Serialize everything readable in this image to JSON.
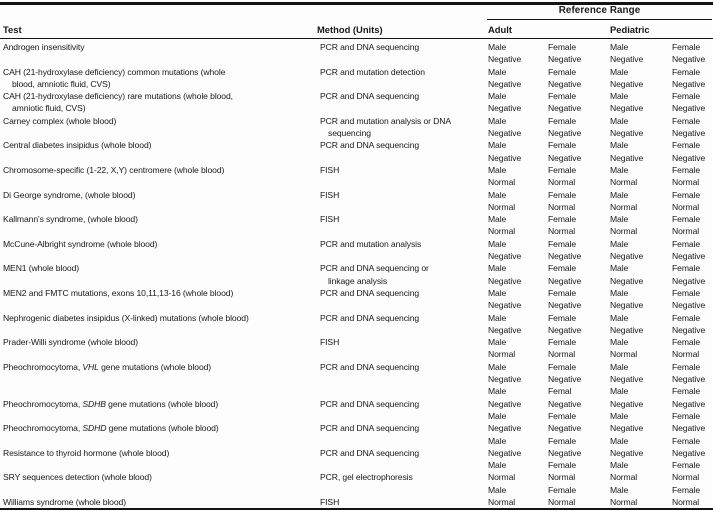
{
  "page": {
    "background_color": "#fdfdfd",
    "text_color": "#191919",
    "rule_color": "#141414"
  },
  "table": {
    "group_header": "Reference Range",
    "columns": {
      "test": "Test",
      "method": "Method (Units)",
      "adult": "Adult",
      "pediatric": "Pediatric"
    },
    "rows": [
      {
        "test": [
          "Androgen insensitivity"
        ],
        "method": [
          "PCR and DNA sequencing"
        ],
        "ref": [
          [
            "Male",
            "Female",
            "Male",
            "Female"
          ],
          [
            "Negative",
            "Negative",
            "Negative",
            "Negative"
          ]
        ]
      },
      {
        "test": [
          "CAH (21-hydroxylase deficiency) common mutations (whole",
          "blood, amniotic fluid, CVS)"
        ],
        "method": [
          "PCR and mutation detection"
        ],
        "ref": [
          [
            "Male",
            "Female",
            "Male",
            "Female"
          ],
          [
            "Negative",
            "Negative",
            "Negative",
            "Negative"
          ]
        ]
      },
      {
        "test": [
          "CAH (21-hydroxylase deficiency) rare mutations (whole blood,",
          "amniotic fluid, CVS)"
        ],
        "method": [
          "PCR and DNA sequencing"
        ],
        "ref": [
          [
            "Male",
            "Female",
            "Male",
            "Female"
          ],
          [
            "Negative",
            "Negative",
            "Negative",
            "Negative"
          ]
        ]
      },
      {
        "test": [
          "Carney complex (whole blood)"
        ],
        "method": [
          "PCR and mutation analysis or DNA",
          "sequencing"
        ],
        "ref": [
          [
            "Male",
            "Female",
            "Male",
            "Female"
          ],
          [
            "Negative",
            "Negative",
            "Negative",
            "Negative"
          ]
        ]
      },
      {
        "test": [
          "Central diabetes insipidus (whole blood)"
        ],
        "method": [
          "PCR and DNA sequencing"
        ],
        "ref": [
          [
            "Male",
            "Female",
            "Male",
            "Female"
          ],
          [
            "Negative",
            "Negative",
            "Negative",
            "Negative"
          ]
        ]
      },
      {
        "test": [
          "Chromosome-specific (1-22, X,Y) centromere (whole blood)"
        ],
        "method": [
          "FISH"
        ],
        "ref": [
          [
            "Male",
            "Female",
            "Male",
            "Female"
          ],
          [
            "Normal",
            "Normal",
            "Normal",
            "Normal"
          ]
        ]
      },
      {
        "test": [
          "Di George syndrome, (whole blood)"
        ],
        "method": [
          "FISH"
        ],
        "ref": [
          [
            "Male",
            "Female",
            "Male",
            "Female"
          ],
          [
            "Normal",
            "Normal",
            "Normal",
            "Normal"
          ]
        ]
      },
      {
        "test": [
          "Kallmann's syndrome, (whole blood)"
        ],
        "method": [
          "FISH"
        ],
        "ref": [
          [
            "Male",
            "Female",
            "Male",
            "Female"
          ],
          [
            "Normal",
            "Normal",
            "Normal",
            "Normal"
          ]
        ]
      },
      {
        "test": [
          "McCune-Albright syndrome (whole blood)"
        ],
        "method": [
          "PCR and mutation analysis"
        ],
        "ref": [
          [
            "Male",
            "Female",
            "Male",
            "Female"
          ],
          [
            "Negative",
            "Negative",
            "Negative",
            "Negative"
          ]
        ]
      },
      {
        "test": [
          "MEN1 (whole blood)"
        ],
        "method": [
          "PCR and DNA sequencing or",
          "linkage analysis"
        ],
        "ref": [
          [
            "Male",
            "Female",
            "Male",
            "Female"
          ],
          [
            "Negative",
            "Negative",
            "Negative",
            "Negative"
          ]
        ]
      },
      {
        "test": [
          "MEN2 and FMTC mutations, exons 10,11,13-16 (whole blood)"
        ],
        "method": [
          "PCR and DNA sequencing"
        ],
        "ref": [
          [
            "Male",
            "Female",
            "Male",
            "Female"
          ],
          [
            "Negative",
            "Negative",
            "Negative",
            "Negative"
          ]
        ]
      },
      {
        "test": [
          "Nephrogenic diabetes insipidus (X-linked) mutations (whole blood)"
        ],
        "method": [
          "PCR and DNA sequencing"
        ],
        "ref": [
          [
            "Male",
            "Female",
            "Male",
            "Female"
          ],
          [
            "Negative",
            "Negative",
            "Negative",
            "Negative"
          ]
        ]
      },
      {
        "test": [
          "Prader-Willi syndrome (whole blood)"
        ],
        "method": [
          "FISH"
        ],
        "ref": [
          [
            "Male",
            "Female",
            "Male",
            "Female"
          ],
          [
            "Normal",
            "Normal",
            "Normal",
            "Normal"
          ]
        ]
      },
      {
        "test": [
          "Pheochromocytoma, *VHL* gene mutations (whole blood)"
        ],
        "method": [
          "PCR and DNA sequencing"
        ],
        "ref": [
          [
            "Male",
            "Female",
            "Male",
            "Female"
          ],
          [
            "Negative",
            "Negative",
            "Negative",
            "Negative"
          ],
          [
            "Male",
            "Femal",
            "Male",
            "Female"
          ]
        ]
      },
      {
        "test": [
          "Pheochromocytoma, *SDHB* gene mutations (whole blood)"
        ],
        "method": [
          "PCR and DNA sequencing"
        ],
        "ref": [
          [
            "Negative",
            "Negative",
            "Negative",
            "Negative"
          ],
          [
            "Male",
            "Female",
            "Male",
            "Female"
          ]
        ]
      },
      {
        "test": [
          "Pheochromocytoma, *SDHD* gene mutations (whole blood)"
        ],
        "method": [
          "PCR and DNA sequencing"
        ],
        "ref": [
          [
            "Negative",
            "Negative",
            "Negative",
            "Negative"
          ],
          [
            "Male",
            "Female",
            "Male",
            "Female"
          ]
        ]
      },
      {
        "test": [
          "Resistance to thyroid hormone (whole blood)"
        ],
        "method": [
          "PCR and DNA sequencing"
        ],
        "ref": [
          [
            "Negative",
            "Negative",
            "Negative",
            "Negative"
          ],
          [
            "Male",
            "Female",
            "Male",
            "Female"
          ]
        ]
      },
      {
        "test": [
          "SRY sequences detection (whole blood)"
        ],
        "method": [
          "PCR, gel electrophoresis"
        ],
        "ref": [
          [
            "Normal",
            "Normal",
            "Normal",
            "Normal"
          ],
          [
            "Male",
            "Female",
            "Male",
            "Female"
          ]
        ]
      },
      {
        "test": [
          "Williams syndrome (whole blood)"
        ],
        "method": [
          "FISH"
        ],
        "ref": [
          [
            "Normal",
            "Normal",
            "Normal",
            "Normal"
          ]
        ]
      }
    ]
  }
}
